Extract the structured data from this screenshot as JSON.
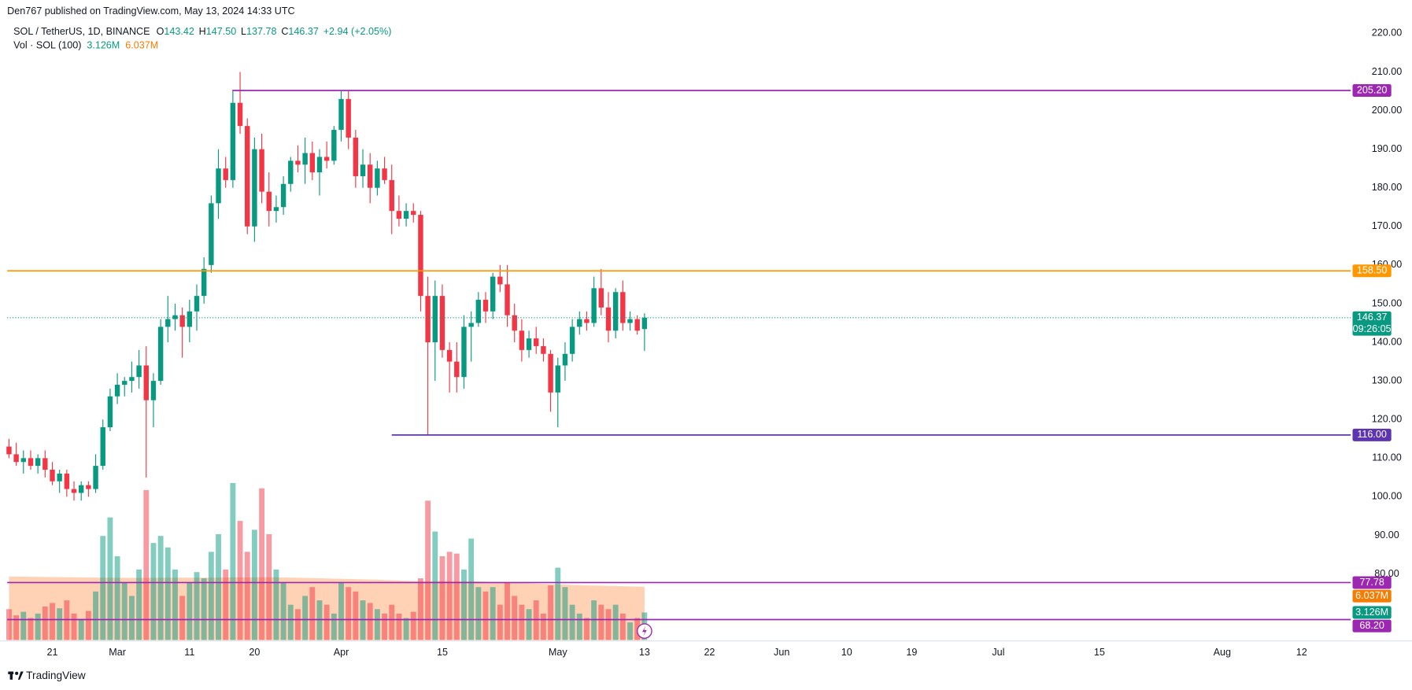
{
  "chart_data": {
    "type": "candlestick",
    "header": "Den767 published on TradingView.com, May 13, 2024 14:33 UTC",
    "legend": {
      "symbol": "SOL / TetherUS, 1D, BINANCE",
      "fields": [
        {
          "key": "O",
          "value": "143.42"
        },
        {
          "key": "H",
          "value": "147.50"
        },
        {
          "key": "L",
          "value": "137.78"
        },
        {
          "key": "C",
          "value": "146.37"
        }
      ],
      "change": "+2.94 (+2.05%)",
      "vol_title": "Vol · SOL (100)",
      "vol": "3.126M",
      "vol_ma": "6.037M"
    },
    "countdown": "09:26:05",
    "footer": "TradingView",
    "up_color": "#089981",
    "down_color": "#f23645",
    "ma_color": "#ff9a5c",
    "open": [
      113,
      111,
      109,
      110,
      108,
      110,
      107,
      104,
      106,
      102,
      101,
      103,
      102,
      108,
      118,
      126,
      129,
      130,
      131,
      134,
      125,
      130,
      144,
      146,
      147,
      144,
      148,
      152,
      160,
      176,
      185,
      182,
      202,
      196,
      170,
      190,
      179,
      174,
      175,
      181,
      187,
      186,
      189,
      184,
      188,
      187,
      195,
      203,
      193,
      183,
      186,
      180,
      185,
      182,
      174,
      172,
      174,
      173,
      152,
      140,
      152,
      138,
      135,
      131,
      144,
      145,
      151,
      148,
      157,
      155,
      147,
      143,
      138,
      141,
      139,
      137,
      127,
      134,
      137,
      144,
      146,
      145,
      154,
      149,
      143,
      153,
      145,
      146,
      143.42
    ],
    "high": [
      115,
      114,
      112,
      112,
      111,
      112,
      109,
      107,
      107,
      104,
      104,
      104,
      111,
      120,
      128,
      132,
      131,
      135,
      138,
      139,
      132,
      146,
      152,
      150,
      149,
      151,
      155,
      162,
      178,
      190,
      188,
      205,
      210,
      198,
      193,
      194,
      184,
      178,
      183,
      188,
      191,
      193,
      192,
      190,
      192,
      196,
      205,
      205,
      195,
      190,
      189,
      187,
      188,
      186,
      178,
      176,
      176,
      174,
      157,
      156,
      155,
      140,
      140,
      147,
      148,
      153,
      153,
      158,
      160,
      160,
      150,
      146,
      143,
      144,
      141,
      138,
      136,
      140,
      146,
      148,
      148,
      157,
      159,
      153,
      154,
      156,
      148,
      147,
      147.5
    ],
    "low": [
      110,
      108,
      106,
      107,
      106,
      105,
      103,
      101,
      100,
      99,
      99,
      100,
      101,
      107,
      117,
      124,
      126,
      127,
      128,
      105,
      118,
      129,
      140,
      143,
      136,
      140,
      143,
      150,
      158,
      172,
      180,
      180,
      194,
      168,
      166,
      176,
      170,
      171,
      173,
      179,
      184,
      181,
      182,
      178,
      185,
      186,
      192,
      190,
      180,
      180,
      176,
      178,
      181,
      168,
      170,
      170,
      171,
      148,
      116,
      130,
      136,
      127,
      127,
      128,
      135,
      144,
      145,
      146,
      153,
      144,
      140,
      135,
      136,
      137,
      135,
      122,
      118,
      130,
      135,
      142,
      143,
      144,
      147,
      140,
      141,
      143,
      143,
      142,
      137.78
    ],
    "close": [
      111,
      109,
      110,
      108,
      110,
      107,
      104,
      106,
      102,
      101,
      103,
      102,
      108,
      118,
      126,
      129,
      130,
      131,
      134,
      125,
      130,
      144,
      146,
      147,
      144,
      148,
      152,
      159,
      176,
      185,
      182,
      202,
      196,
      170,
      190,
      179,
      174,
      175,
      181,
      187,
      186,
      189,
      184,
      188,
      187,
      195,
      203,
      193,
      183,
      186,
      180,
      185,
      182,
      174,
      172,
      174,
      173,
      152,
      140,
      152,
      138,
      135,
      131,
      144,
      145,
      151,
      148,
      157,
      155,
      147,
      143,
      138,
      141,
      139,
      137,
      127,
      134,
      137,
      144,
      146,
      145,
      154,
      149,
      143,
      153,
      145,
      146,
      143,
      146.37
    ],
    "volume": [
      3.5,
      2.8,
      3.2,
      2.5,
      3.0,
      3.8,
      4.2,
      3.6,
      4.5,
      3.0,
      2.4,
      3.3,
      5.5,
      11.8,
      13.9,
      9.5,
      6.5,
      5.0,
      8.0,
      17.0,
      11.0,
      11.8,
      10.5,
      8.0,
      5.0,
      6.5,
      7.7,
      7.0,
      10.0,
      12.0,
      8.0,
      17.8,
      13.5,
      10.0,
      12.5,
      17.2,
      12.0,
      8.0,
      6.5,
      4.0,
      3.5,
      5.0,
      6.0,
      4.5,
      4.0,
      3.0,
      6.5,
      6.0,
      5.5,
      4.5,
      4.2,
      3.5,
      3.0,
      4.0,
      3.0,
      2.5,
      3.2,
      7.0,
      15.8,
      12.3,
      9.5,
      10.0,
      9.8,
      8.0,
      11.5,
      6.0,
      5.5,
      6.0,
      4.0,
      6.5,
      5.0,
      4.0,
      3.5,
      4.5,
      3.0,
      6.2,
      8.2,
      6.0,
      4.0,
      3.0,
      2.5,
      4.5,
      4.0,
      3.5,
      4.0,
      3.0,
      2.0,
      2.5,
      3.126
    ],
    "volume_ma": [
      7.2,
      7.19,
      7.18,
      7.17,
      7.16,
      7.15,
      7.14,
      7.13,
      7.12,
      7.11,
      7.1,
      7.09,
      7.08,
      7.08,
      7.07,
      7.07,
      7.06,
      7.05,
      7.05,
      7.05,
      7.06,
      7.06,
      7.07,
      7.07,
      7.07,
      7.07,
      7.07,
      7.07,
      7.08,
      7.08,
      7.09,
      7.1,
      7.1,
      7.1,
      7.1,
      7.11,
      7.11,
      7.1,
      7.09,
      7.08,
      7.06,
      7.04,
      7.02,
      7.0,
      6.98,
      6.96,
      6.94,
      6.92,
      6.9,
      6.88,
      6.86,
      6.83,
      6.8,
      6.78,
      6.75,
      6.72,
      6.69,
      6.67,
      6.68,
      6.69,
      6.69,
      6.69,
      6.68,
      6.67,
      6.67,
      6.64,
      6.61,
      6.58,
      6.55,
      6.52,
      6.49,
      6.46,
      6.43,
      6.4,
      6.37,
      6.34,
      6.31,
      6.28,
      6.25,
      6.22,
      6.2,
      6.18,
      6.16,
      6.14,
      6.12,
      6.1,
      6.08,
      6.06,
      6.037
    ],
    "hlines": [
      {
        "value": 205.2,
        "label": "205.20",
        "color": "#9c27b0"
      },
      {
        "value": 158.5,
        "label": "158.50",
        "color": "#ff9800"
      },
      {
        "value": 116,
        "label": "116.00",
        "color": "#5e35b1"
      },
      {
        "value": 77.78,
        "label": "77.78",
        "color": "#9c27b0"
      },
      {
        "value": 68.2,
        "label": "68.20",
        "color": "#9c27b0"
      }
    ],
    "xlim": [
      -0.25,
      185.8
    ],
    "xticks": [
      {
        "value": 6,
        "label": "21"
      },
      {
        "value": 15,
        "label": "Mar"
      },
      {
        "value": 25,
        "label": "11"
      },
      {
        "value": 34,
        "label": "20"
      },
      {
        "value": 46,
        "label": "Apr"
      },
      {
        "value": 60,
        "label": "15"
      },
      {
        "value": 76,
        "label": "May"
      },
      {
        "value": 88,
        "label": "13"
      },
      {
        "value": 97,
        "label": "22"
      },
      {
        "value": 107,
        "label": "Jun"
      },
      {
        "value": 116,
        "label": "10"
      },
      {
        "value": 125,
        "label": "19"
      },
      {
        "value": 137,
        "label": "Jul"
      },
      {
        "value": 151,
        "label": "15"
      },
      {
        "value": 168,
        "label": "Aug"
      },
      {
        "value": 179,
        "label": "12"
      }
    ],
    "ylim": [
      62.9,
      222.1
    ],
    "yticks": [
      {
        "value": 80,
        "label": "80.00"
      },
      {
        "value": 90,
        "label": "90.00"
      },
      {
        "value": 100,
        "label": "100.00"
      },
      {
        "value": 110,
        "label": "110.00"
      },
      {
        "value": 120,
        "label": "120.00"
      },
      {
        "value": 130,
        "label": "130.00"
      },
      {
        "value": 140,
        "label": "140.00"
      },
      {
        "value": 150,
        "label": "150.00"
      },
      {
        "value": 160,
        "label": "160.00"
      },
      {
        "value": 170,
        "label": "170.00"
      },
      {
        "value": 180,
        "label": "180.00"
      },
      {
        "value": 190,
        "label": "190.00"
      },
      {
        "value": 200,
        "label": "200.00"
      },
      {
        "value": 210,
        "label": "210.00"
      },
      {
        "value": 220,
        "label": "220.00"
      }
    ],
    "y2lim": [
      0,
      69.7
    ],
    "grid": false
  }
}
